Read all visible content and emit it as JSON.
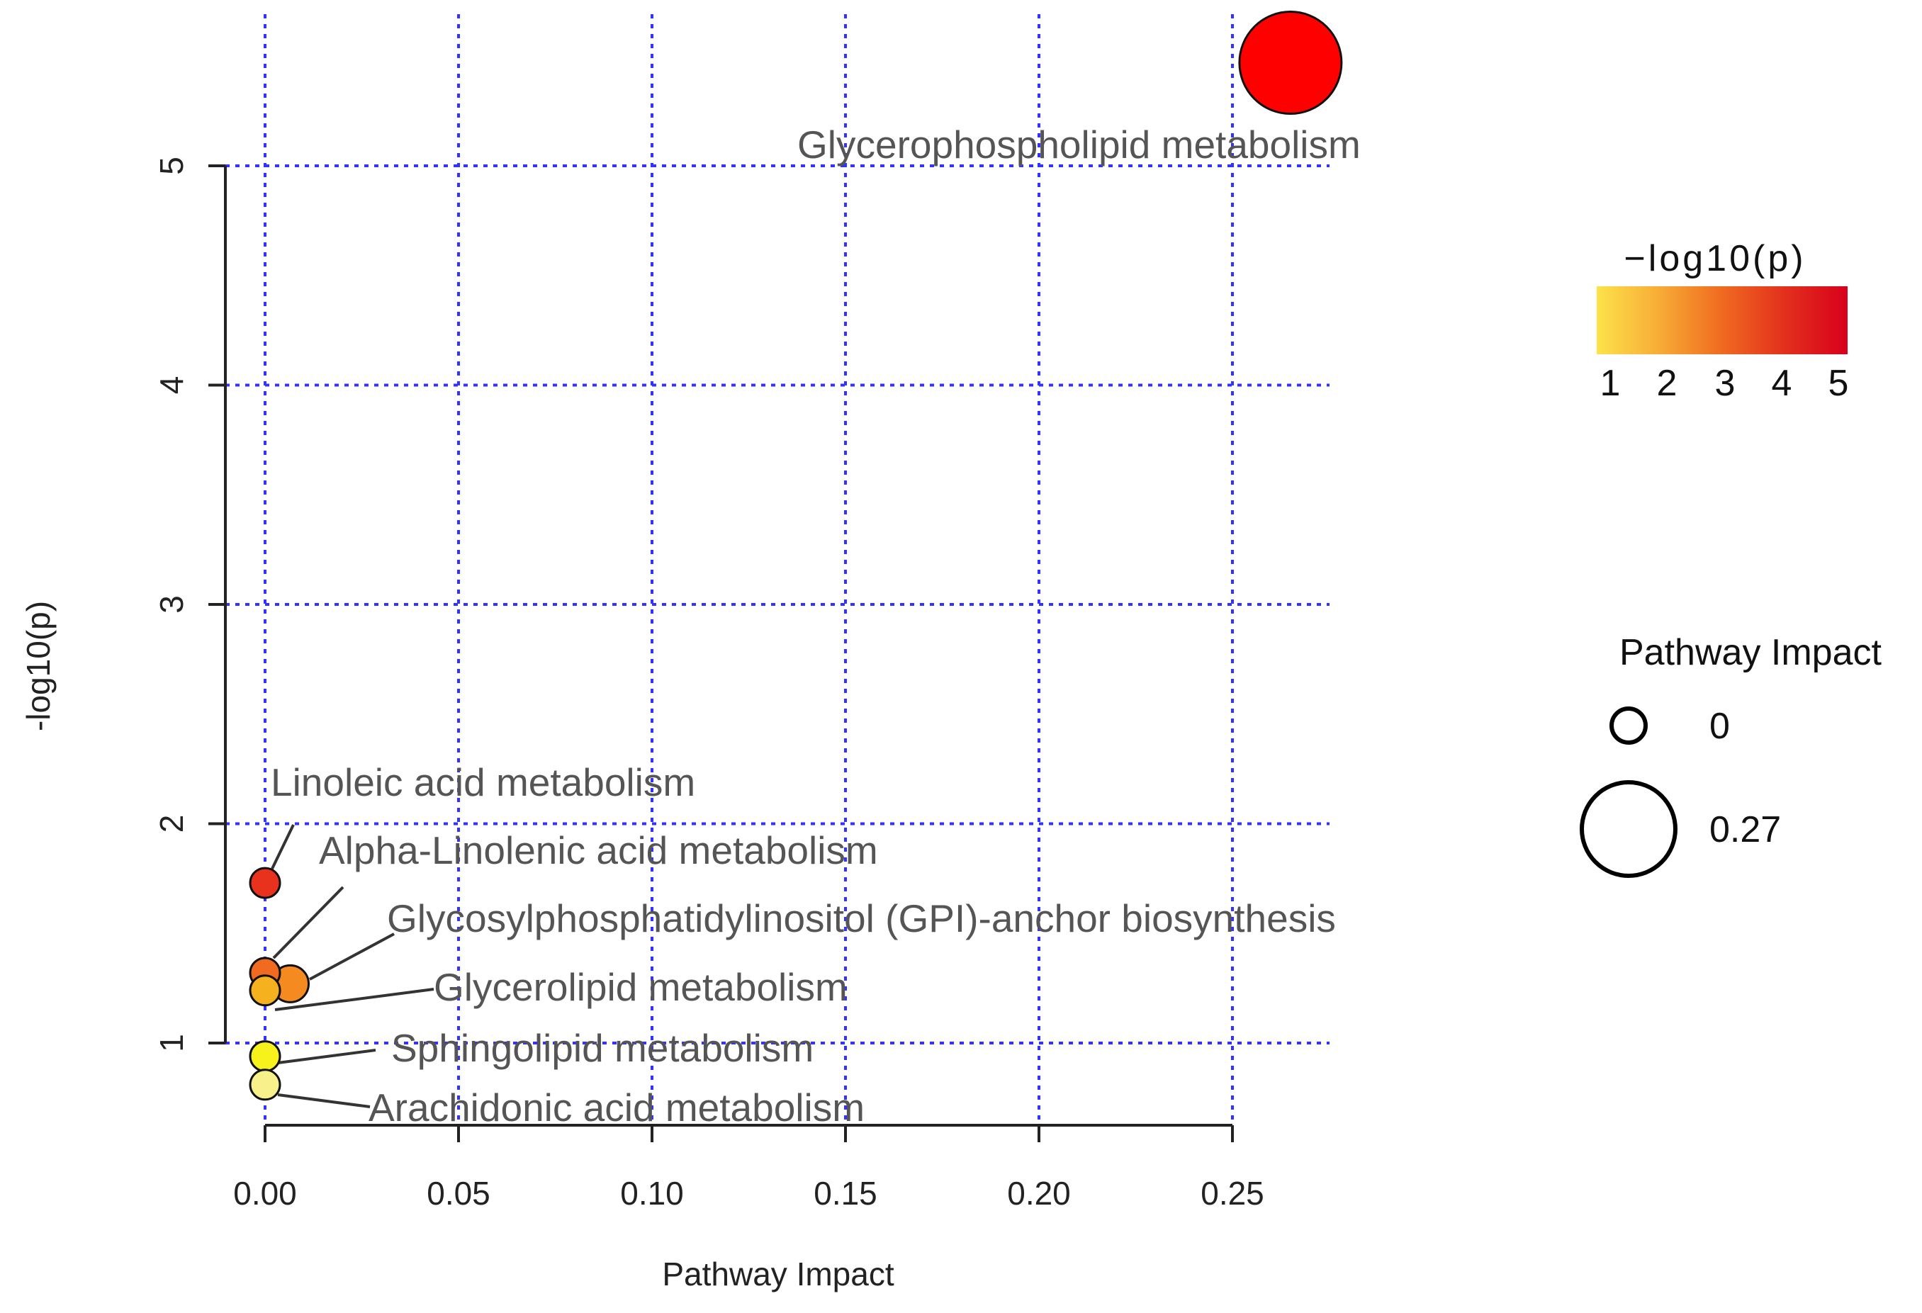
{
  "chart_data": {
    "type": "scatter",
    "title": "",
    "xlabel": "Pathway Impact",
    "ylabel": "-log10(p)",
    "xlim": [
      -0.005,
      0.27
    ],
    "ylim": [
      0.6,
      5.6
    ],
    "x_ticks": [
      0.0,
      0.05,
      0.1,
      0.15,
      0.2,
      0.25
    ],
    "x_tick_labels": [
      "0.00",
      "0.05",
      "0.10",
      "0.15",
      "0.20",
      "0.25"
    ],
    "y_ticks": [
      1,
      2,
      3,
      4,
      5
    ],
    "y_tick_labels": [
      "1",
      "2",
      "3",
      "4",
      "5"
    ],
    "grid": true,
    "points": [
      {
        "label": "Glycerophospholipid metabolism",
        "x": 0.265,
        "y": 5.47,
        "color": "#ff0000"
      },
      {
        "label": "Linoleic acid metabolism",
        "x": 0.0,
        "y": 1.73,
        "color": "#e8321e"
      },
      {
        "label": "Alpha-Linolenic acid metabolism",
        "x": 0.0,
        "y": 1.32,
        "color": "#f06a20"
      },
      {
        "label": "Glycosylphosphatidylinositol (GPI)-anchor biosynthesis",
        "x": 0.0065,
        "y": 1.27,
        "color": "#f58a20"
      },
      {
        "label": "Glycerolipid metabolism",
        "x": 0.0,
        "y": 1.24,
        "color": "#f5b21e"
      },
      {
        "label": "Sphingolipid metabolism",
        "x": 0.0,
        "y": 0.94,
        "color": "#f7f21c"
      },
      {
        "label": "Arachidonic acid metabolism",
        "x": 0.0,
        "y": 0.81,
        "color": "#f8f08a"
      }
    ],
    "color_legend": {
      "title": "−log10(p)",
      "ticks": [
        "1",
        "2",
        "3",
        "4",
        "5"
      ],
      "colors": [
        "#fde24a",
        "#f7ac36",
        "#f06a20",
        "#e2301d",
        "#d8001c"
      ]
    },
    "size_legend": {
      "title": "Pathway Impact",
      "entries": [
        "0",
        "0.27"
      ]
    }
  }
}
